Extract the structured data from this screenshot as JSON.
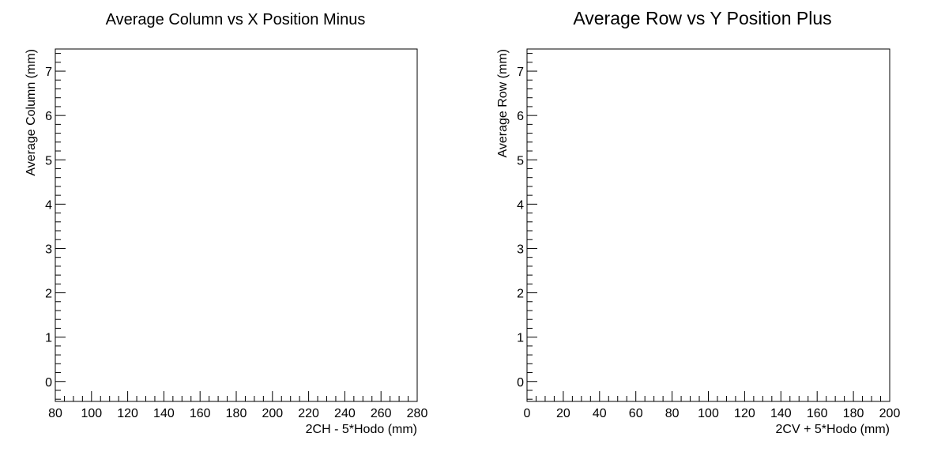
{
  "chart_data": [
    {
      "type": "scatter",
      "title": "Average Column vs X Position Minus",
      "xlabel": "2CH - 5*Hodo (mm)",
      "ylabel": "Average Column (mm)",
      "xlim": [
        80,
        280
      ],
      "ylim": [
        -0.45,
        7.5
      ],
      "xticks": [
        80,
        100,
        120,
        140,
        160,
        180,
        200,
        220,
        240,
        260,
        280
      ],
      "xtick_labels": [
        "80",
        "100",
        "120",
        "140",
        "160",
        "180",
        "200",
        "220",
        "240",
        "260",
        "280"
      ],
      "yticks": [
        0,
        1,
        2,
        3,
        4,
        5,
        6,
        7
      ],
      "ytick_labels": [
        "0",
        "1",
        "2",
        "3",
        "4",
        "5",
        "6",
        "7"
      ],
      "series": [],
      "grid": false,
      "legend": "none"
    },
    {
      "type": "scatter",
      "title": "Average Row vs Y Position Plus",
      "xlabel": "2CV + 5*Hodo (mm)",
      "ylabel": "Average Row (mm)",
      "xlim": [
        0,
        200
      ],
      "ylim": [
        -0.45,
        7.5
      ],
      "xticks": [
        0,
        20,
        40,
        60,
        80,
        100,
        120,
        140,
        160,
        180,
        200
      ],
      "xtick_labels": [
        "0",
        "20",
        "40",
        "60",
        "80",
        "100",
        "120",
        "140",
        "160",
        "180",
        "200"
      ],
      "yticks": [
        0,
        1,
        2,
        3,
        4,
        5,
        6,
        7
      ],
      "ytick_labels": [
        "0",
        "1",
        "2",
        "3",
        "4",
        "5",
        "6",
        "7"
      ],
      "series": [],
      "grid": false,
      "legend": "none"
    }
  ]
}
